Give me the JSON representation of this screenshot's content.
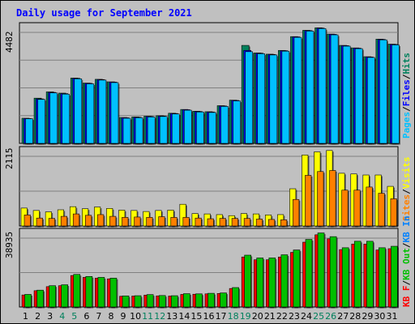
{
  "title": "Daily usage for September 2021",
  "colors": {
    "hits": "#00805c",
    "files": "#0000ff",
    "pages": "#00c0ff",
    "visits": "#ffff00",
    "sites": "#ff8000",
    "kb_in": "#0080ff",
    "kb_out": "#00c000",
    "kb_f": "#ff0000",
    "weekend": "#00805c",
    "weekday": "#000000"
  },
  "chart_data": [
    {
      "type": "bar",
      "title": "",
      "ymax_label": "4482",
      "ylim": [
        0,
        4482
      ],
      "legend": [
        {
          "key": "pages",
          "text": "Pages"
        },
        {
          "key": "sep",
          "text": "/"
        },
        {
          "key": "files",
          "text": "Files"
        },
        {
          "key": "sep",
          "text": "/"
        },
        {
          "key": "hits",
          "text": "Hits"
        }
      ],
      "categories": [
        "1",
        "2",
        "3",
        "4",
        "5",
        "6",
        "7",
        "8",
        "9",
        "10",
        "11",
        "12",
        "13",
        "14",
        "15",
        "16",
        "17",
        "18",
        "19",
        "20",
        "21",
        "22",
        "23",
        "24",
        "25",
        "26",
        "27",
        "28",
        "29",
        "30",
        "31"
      ],
      "weekend_days": [
        4,
        5,
        11,
        12,
        18,
        19,
        25,
        26
      ],
      "series": [
        {
          "key": "hits",
          "values": [
            1000,
            1800,
            2050,
            2000,
            2600,
            2400,
            2550,
            2450,
            1030,
            1050,
            1080,
            1100,
            1200,
            1350,
            1280,
            1260,
            1500,
            1720,
            3900,
            3600,
            3550,
            3700,
            4250,
            4500,
            4600,
            4350,
            3900,
            3800,
            3450,
            4150,
            3950
          ]
        },
        {
          "key": "files",
          "values": [
            990,
            1770,
            2030,
            1980,
            2590,
            2390,
            2540,
            2440,
            1020,
            1040,
            1070,
            1090,
            1190,
            1340,
            1270,
            1250,
            1490,
            1710,
            3700,
            3590,
            3540,
            3690,
            4240,
            4490,
            4590,
            4340,
            3890,
            3790,
            3440,
            4140,
            3940
          ]
        },
        {
          "key": "pages",
          "values": [
            980,
            1750,
            2010,
            1960,
            2570,
            2370,
            2520,
            2420,
            1000,
            1020,
            1050,
            1070,
            1170,
            1320,
            1250,
            1230,
            1470,
            1690,
            3650,
            3570,
            3520,
            3670,
            4220,
            4470,
            4570,
            4320,
            3870,
            3770,
            3420,
            4120,
            3920
          ]
        }
      ]
    },
    {
      "type": "bar",
      "title": "",
      "ymax_label": "2115",
      "ylim": [
        0,
        2115
      ],
      "legend": [
        {
          "key": "sites",
          "text": "Sites"
        },
        {
          "key": "sep",
          "text": "/"
        },
        {
          "key": "visits",
          "text": "Visits"
        }
      ],
      "categories": [
        "1",
        "2",
        "3",
        "4",
        "5",
        "6",
        "7",
        "8",
        "9",
        "10",
        "11",
        "12",
        "13",
        "14",
        "15",
        "16",
        "17",
        "18",
        "19",
        "20",
        "21",
        "22",
        "23",
        "24",
        "25",
        "26",
        "27",
        "28",
        "29",
        "30",
        "31"
      ],
      "series": [
        {
          "key": "visits",
          "values": [
            520,
            450,
            410,
            470,
            560,
            500,
            550,
            510,
            460,
            450,
            420,
            450,
            460,
            630,
            360,
            350,
            330,
            300,
            360,
            350,
            320,
            330,
            1080,
            2060,
            2150,
            2190,
            1530,
            1510,
            1480,
            1480,
            1150
          ]
        },
        {
          "key": "sites",
          "values": [
            320,
            230,
            220,
            280,
            350,
            310,
            330,
            280,
            250,
            260,
            250,
            270,
            250,
            250,
            230,
            210,
            220,
            220,
            220,
            200,
            190,
            180,
            770,
            1470,
            1580,
            1610,
            1040,
            1040,
            1130,
            950,
            790
          ]
        }
      ]
    },
    {
      "type": "bar",
      "title": "",
      "ymax_label": "38935",
      "ylim": [
        0,
        38935
      ],
      "legend": [
        {
          "key": "kb_f",
          "text": "KB F"
        },
        {
          "key": "sep",
          "text": "/"
        },
        {
          "key": "kb_out",
          "text": "KB Out"
        },
        {
          "key": "sep",
          "text": "/"
        },
        {
          "key": "kb_in",
          "text": "KB In"
        }
      ],
      "categories": [
        "1",
        "2",
        "3",
        "4",
        "5",
        "6",
        "7",
        "8",
        "9",
        "10",
        "11",
        "12",
        "13",
        "14",
        "15",
        "16",
        "17",
        "18",
        "19",
        "20",
        "21",
        "22",
        "23",
        "24",
        "25",
        "26",
        "27",
        "28",
        "29",
        "30",
        "31"
      ],
      "series": [
        {
          "key": "kb_f",
          "values": [
            6500,
            8800,
            11000,
            11500,
            17000,
            16000,
            15600,
            15200,
            5800,
            5900,
            6400,
            6000,
            5900,
            6800,
            6900,
            7100,
            7300,
            10000,
            27000,
            25500,
            25500,
            27000,
            29500,
            35000,
            39000,
            36800,
            31000,
            34000,
            34000,
            30800,
            31500
          ]
        },
        {
          "key": "kb_out",
          "values": [
            6800,
            9100,
            11500,
            12000,
            17600,
            16500,
            16000,
            15600,
            6000,
            6100,
            6700,
            6200,
            6100,
            7200,
            7100,
            7400,
            7600,
            10500,
            28000,
            26500,
            26500,
            28200,
            30800,
            36500,
            40000,
            38000,
            32000,
            35500,
            35500,
            32000,
            32800
          ]
        }
      ]
    }
  ]
}
